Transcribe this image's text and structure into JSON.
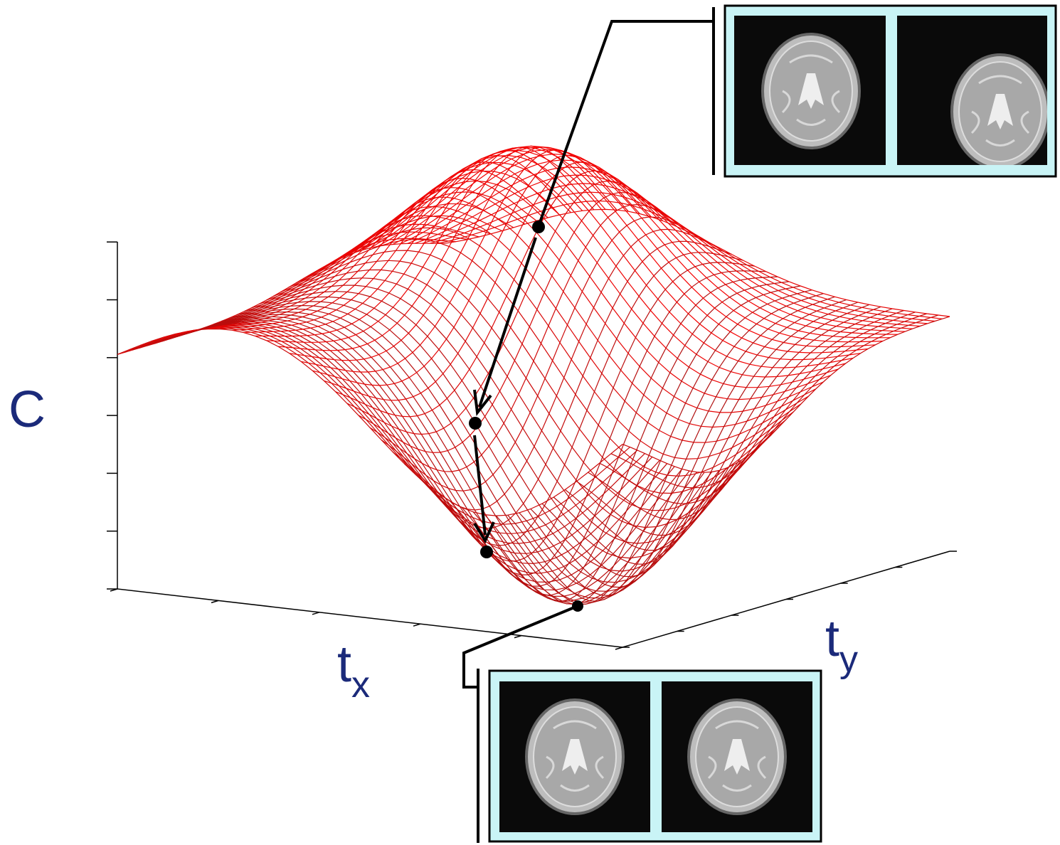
{
  "axes": {
    "z": {
      "label": "C"
    },
    "x": {
      "label": "t",
      "subscript": "x"
    },
    "y": {
      "label": "t",
      "subscript": "y"
    }
  }
}
